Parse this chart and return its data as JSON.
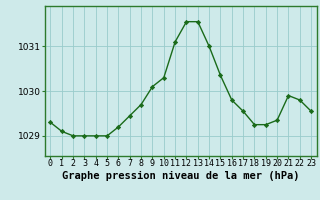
{
  "x": [
    0,
    1,
    2,
    3,
    4,
    5,
    6,
    7,
    8,
    9,
    10,
    11,
    12,
    13,
    14,
    15,
    16,
    17,
    18,
    19,
    20,
    21,
    22,
    23
  ],
  "y": [
    1029.3,
    1029.1,
    1029.0,
    1029.0,
    1029.0,
    1029.0,
    1029.2,
    1029.45,
    1029.7,
    1030.1,
    1030.3,
    1031.1,
    1031.55,
    1031.55,
    1031.0,
    1030.35,
    1029.8,
    1029.55,
    1029.25,
    1029.25,
    1029.35,
    1029.9,
    1029.8,
    1029.55
  ],
  "line_color": "#1a6b1a",
  "marker": "D",
  "marker_size": 2.2,
  "bg_color": "#ceeaea",
  "grid_color": "#99cccc",
  "xlabel": "Graphe pression niveau de la mer (hPa)",
  "xlabel_fontsize": 7.5,
  "ylabel_ticks": [
    1029,
    1030,
    1031
  ],
  "ylim": [
    1028.55,
    1031.9
  ],
  "xlim": [
    -0.5,
    23.5
  ],
  "tick_fontsize": 6.0,
  "line_width": 1.0,
  "bottom_bar_color": "#2d7a2d",
  "spine_color": "#2d7a2d"
}
